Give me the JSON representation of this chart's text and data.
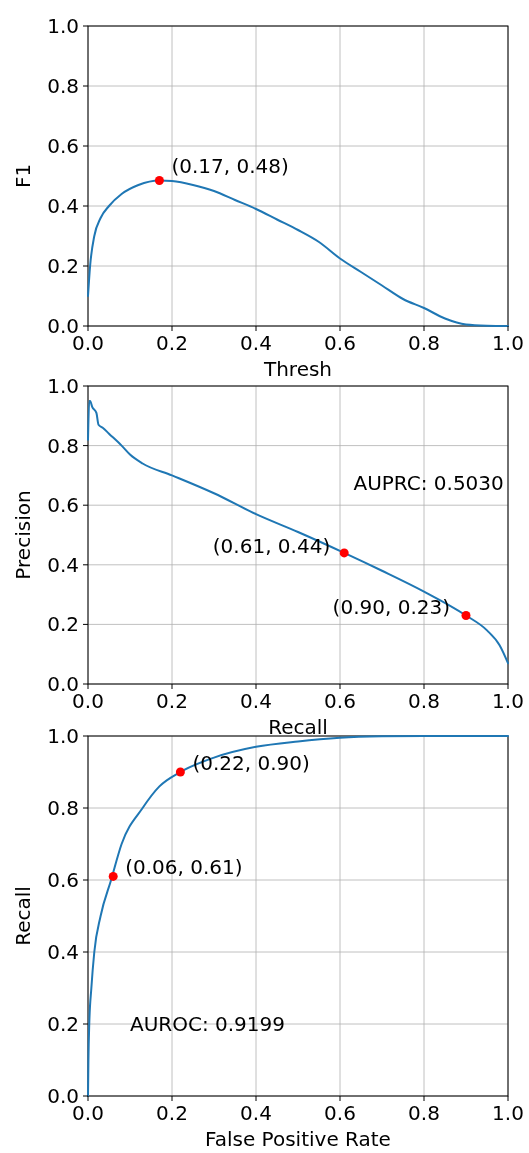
{
  "chart_data": [
    {
      "type": "line",
      "xlabel": "Thresh",
      "ylabel": "F1",
      "xlim": [
        0,
        1
      ],
      "ylim": [
        0,
        1
      ],
      "xticks": [
        {
          "value": 0,
          "label": "0.0"
        },
        {
          "value": 0.2,
          "label": "0.2"
        },
        {
          "value": 0.4,
          "label": "0.4"
        },
        {
          "value": 0.6,
          "label": "0.6"
        },
        {
          "value": 0.8,
          "label": "0.8"
        },
        {
          "value": 1,
          "label": "1.0"
        }
      ],
      "yticks": [
        {
          "value": 0,
          "label": "0.0"
        },
        {
          "value": 0.2,
          "label": "0.2"
        },
        {
          "value": 0.4,
          "label": "0.4"
        },
        {
          "value": 0.6,
          "label": "0.6"
        },
        {
          "value": 0.8,
          "label": "0.8"
        },
        {
          "value": 1,
          "label": "1.0"
        }
      ],
      "grid": true,
      "series": [
        {
          "color": "#1f77b4",
          "x": [
            0,
            0.005,
            0.015,
            0.03,
            0.05,
            0.08,
            0.12,
            0.17,
            0.2,
            0.25,
            0.3,
            0.35,
            0.4,
            0.45,
            0.5,
            0.55,
            0.6,
            0.65,
            0.7,
            0.75,
            0.8,
            0.85,
            0.9,
            0.95,
            1
          ],
          "values": [
            0.1,
            0.2,
            0.3,
            0.36,
            0.4,
            0.44,
            0.47,
            0.485,
            0.483,
            0.47,
            0.45,
            0.42,
            0.39,
            0.355,
            0.32,
            0.28,
            0.225,
            0.18,
            0.135,
            0.09,
            0.06,
            0.025,
            0.005,
            0.001,
            0
          ]
        },
        {
          "type": "scatter",
          "color": "#ff0000",
          "x": [
            0.17
          ],
          "values": [
            0.485
          ]
        }
      ],
      "annotations": [
        {
          "text": "(0.17, 0.48)",
          "x": 0.17,
          "y": 0.485
        }
      ]
    },
    {
      "type": "line",
      "xlabel": "Recall",
      "ylabel": "Precision",
      "xlim": [
        0,
        1
      ],
      "ylim": [
        0,
        1
      ],
      "xticks": [
        {
          "value": 0,
          "label": "0.0"
        },
        {
          "value": 0.2,
          "label": "0.2"
        },
        {
          "value": 0.4,
          "label": "0.4"
        },
        {
          "value": 0.6,
          "label": "0.6"
        },
        {
          "value": 0.8,
          "label": "0.8"
        },
        {
          "value": 1,
          "label": "1.0"
        }
      ],
      "yticks": [
        {
          "value": 0,
          "label": "0.0"
        },
        {
          "value": 0.2,
          "label": "0.2"
        },
        {
          "value": 0.4,
          "label": "0.4"
        },
        {
          "value": 0.6,
          "label": "0.6"
        },
        {
          "value": 0.8,
          "label": "0.8"
        },
        {
          "value": 1,
          "label": "1.0"
        }
      ],
      "grid": true,
      "series": [
        {
          "color": "#1f77b4",
          "x": [
            0,
            0.003,
            0.005,
            0.01,
            0.02,
            0.025,
            0.035,
            0.05,
            0.08,
            0.1,
            0.13,
            0.2,
            0.3,
            0.4,
            0.5,
            0.61,
            0.7,
            0.8,
            0.9,
            0.95,
            0.98,
            1
          ],
          "values": [
            0.82,
            0.95,
            0.95,
            0.93,
            0.91,
            0.87,
            0.86,
            0.84,
            0.8,
            0.77,
            0.74,
            0.7,
            0.64,
            0.57,
            0.51,
            0.44,
            0.38,
            0.31,
            0.23,
            0.18,
            0.13,
            0.07
          ]
        },
        {
          "type": "scatter",
          "color": "#ff0000",
          "x": [
            0.61,
            0.9
          ],
          "values": [
            0.44,
            0.23
          ]
        }
      ],
      "annotations": [
        "AUPRC: 0.5030",
        {
          "text": "(0.61, 0.44)",
          "x": 0.61,
          "y": 0.44
        },
        {
          "text": "(0.90, 0.23)",
          "x": 0.9,
          "y": 0.23
        }
      ]
    },
    {
      "type": "line",
      "xlabel": "False Positive Rate",
      "ylabel": "Recall",
      "xlim": [
        0,
        1
      ],
      "ylim": [
        0,
        1
      ],
      "xticks": [
        {
          "value": 0,
          "label": "0.0"
        },
        {
          "value": 0.2,
          "label": "0.2"
        },
        {
          "value": 0.4,
          "label": "0.4"
        },
        {
          "value": 0.6,
          "label": "0.6"
        },
        {
          "value": 0.8,
          "label": "0.8"
        },
        {
          "value": 1,
          "label": "1.0"
        }
      ],
      "yticks": [
        {
          "value": 0,
          "label": "0.0"
        },
        {
          "value": 0.2,
          "label": "0.2"
        },
        {
          "value": 0.4,
          "label": "0.4"
        },
        {
          "value": 0.6,
          "label": "0.6"
        },
        {
          "value": 0.8,
          "label": "0.8"
        },
        {
          "value": 1,
          "label": "1.0"
        }
      ],
      "grid": true,
      "series": [
        {
          "color": "#1f77b4",
          "x": [
            0,
            0.001,
            0.003,
            0.008,
            0.015,
            0.03,
            0.055,
            0.08,
            0.13,
            0.17,
            0.22,
            0.3,
            0.4,
            0.5,
            0.6,
            0.7,
            0.8,
            1
          ],
          "values": [
            0,
            0.1,
            0.2,
            0.3,
            0.4,
            0.5,
            0.6,
            0.7,
            0.8,
            0.86,
            0.9,
            0.94,
            0.97,
            0.985,
            0.995,
            0.999,
            1,
            1
          ]
        },
        {
          "type": "scatter",
          "color": "#ff0000",
          "x": [
            0.06,
            0.22
          ],
          "values": [
            0.61,
            0.9
          ]
        }
      ],
      "annotations": [
        {
          "text": "(0.22, 0.90)",
          "x": 0.22,
          "y": 0.9
        },
        {
          "text": "(0.06, 0.61)",
          "x": 0.06,
          "y": 0.61
        },
        "AUROC: 0.9199"
      ]
    }
  ]
}
